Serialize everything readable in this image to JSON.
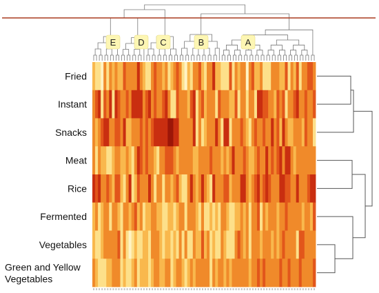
{
  "chart_data": {
    "type": "heatmap",
    "rows": [
      "Fried",
      "Instant",
      "Snacks",
      "Meat",
      "Rice",
      "Fermented",
      "Vegetables",
      "Green and Yellow Vegetables"
    ],
    "cluster_labels": [
      "E",
      "D",
      "C",
      "B",
      "A"
    ],
    "n_columns": 80,
    "value_range": [
      0,
      9
    ],
    "colormap": [
      "#fff3c4",
      "#fde08a",
      "#f9b84d",
      "#f08a2a",
      "#e2561b",
      "#c92e10",
      "#9c1608"
    ],
    "legend": "none",
    "grid": false,
    "row_dendrogram": "right",
    "column_dendrogram": "top",
    "values_by_row": {
      "Fried": [
        3,
        1,
        2,
        0,
        4,
        2,
        5,
        3,
        4,
        3,
        3,
        6,
        5,
        5,
        4,
        4,
        7,
        5,
        3,
        1,
        2,
        4,
        6,
        4,
        5,
        3,
        5,
        1,
        3,
        5,
        6,
        4,
        1,
        0,
        3,
        2,
        5,
        4,
        6,
        3,
        1,
        4,
        5,
        7,
        3,
        3,
        2,
        2,
        1,
        6,
        1,
        4,
        3,
        4,
        5,
        0,
        4,
        6,
        3,
        3,
        5,
        2,
        1,
        2,
        5,
        4,
        4,
        3,
        3,
        6,
        1,
        4,
        3,
        6,
        2,
        4,
        4,
        6,
        6,
        5
      ],
      "Instant": [
        4,
        6,
        8,
        2,
        6,
        5,
        7,
        2,
        7,
        6,
        5,
        5,
        6,
        4,
        7,
        8,
        7,
        8,
        4,
        6,
        8,
        5,
        6,
        5,
        5,
        6,
        8,
        4,
        1,
        2,
        6,
        5,
        4,
        4,
        3,
        6,
        8,
        2,
        4,
        6,
        3,
        5,
        5,
        4,
        1,
        6,
        5,
        5,
        5,
        3,
        3,
        6,
        1,
        4,
        4,
        2,
        4,
        4,
        1,
        7,
        8,
        6,
        6,
        4,
        4,
        3,
        6,
        4,
        6,
        2,
        4,
        4,
        6,
        7,
        5,
        4,
        6,
        5,
        4,
        6
      ],
      "Snacks": [
        5,
        3,
        4,
        6,
        7,
        8,
        5,
        4,
        6,
        6,
        4,
        7,
        3,
        3,
        5,
        5,
        4,
        6,
        4,
        6,
        5,
        6,
        7,
        7,
        8,
        8,
        8,
        9,
        9,
        7,
        8,
        5,
        5,
        5,
        5,
        5,
        7,
        2,
        5,
        2,
        3,
        4,
        4,
        5,
        8,
        5,
        2,
        8,
        8,
        2,
        5,
        5,
        4,
        6,
        4,
        3,
        2,
        5,
        6,
        4,
        4,
        6,
        4,
        5,
        8,
        5,
        6,
        3,
        8,
        4,
        3,
        3,
        5,
        4,
        4,
        3,
        6,
        4,
        4,
        2
      ],
      "Meat": [
        5,
        2,
        4,
        3,
        3,
        1,
        2,
        3,
        5,
        4,
        3,
        3,
        4,
        3,
        1,
        5,
        7,
        6,
        5,
        6,
        4,
        5,
        3,
        1,
        5,
        4,
        6,
        6,
        6,
        5,
        3,
        4,
        4,
        5,
        4,
        5,
        3,
        3,
        4,
        5,
        5,
        5,
        6,
        5,
        5,
        4,
        3,
        5,
        3,
        5,
        8,
        4,
        4,
        5,
        6,
        5,
        3,
        3,
        5,
        6,
        4,
        5,
        8,
        5,
        6,
        4,
        6,
        7,
        5,
        7,
        7,
        5,
        3,
        4,
        5,
        4,
        4,
        4,
        5,
        5
      ],
      "Rice": [
        8,
        6,
        7,
        5,
        4,
        6,
        4,
        3,
        6,
        6,
        3,
        2,
        5,
        7,
        2,
        3,
        6,
        5,
        4,
        4,
        7,
        5,
        2,
        4,
        4,
        2,
        4,
        4,
        3,
        5,
        6,
        3,
        2,
        2,
        5,
        7,
        5,
        3,
        4,
        8,
        5,
        3,
        2,
        8,
        4,
        5,
        5,
        6,
        6,
        3,
        4,
        4,
        5,
        7,
        7,
        5,
        3,
        5,
        6,
        7,
        4,
        6,
        8,
        6,
        4,
        5,
        4,
        7,
        7,
        6,
        6,
        4,
        5,
        7,
        5,
        5,
        5,
        6,
        8,
        7
      ],
      "Fermented": [
        3,
        4,
        1,
        3,
        4,
        4,
        2,
        5,
        5,
        3,
        2,
        4,
        4,
        3,
        4,
        6,
        3,
        4,
        1,
        3,
        3,
        4,
        5,
        3,
        3,
        1,
        1,
        3,
        3,
        2,
        3,
        5,
        4,
        2,
        4,
        5,
        4,
        3,
        2,
        4,
        2,
        2,
        3,
        1,
        3,
        1,
        5,
        5,
        3,
        2,
        1,
        3,
        3,
        4,
        3,
        5,
        2,
        5,
        5,
        6,
        2,
        5,
        3,
        4,
        4,
        5,
        3,
        4,
        5,
        6,
        5,
        4,
        5,
        5,
        4,
        3,
        4,
        5,
        3,
        6
      ],
      "Vegetables": [
        3,
        2,
        2,
        3,
        4,
        5,
        5,
        4,
        5,
        6,
        2,
        4,
        1,
        0,
        2,
        3,
        2,
        2,
        3,
        3,
        1,
        4,
        5,
        5,
        3,
        1,
        3,
        3,
        1,
        3,
        2,
        4,
        1,
        4,
        2,
        2,
        4,
        3,
        3,
        6,
        3,
        4,
        2,
        3,
        2,
        1,
        4,
        3,
        2,
        1,
        2,
        5,
        6,
        4,
        3,
        4,
        2,
        4,
        5,
        5,
        3,
        4,
        4,
        4,
        3,
        4,
        3,
        5,
        6,
        5,
        5,
        5,
        4,
        2,
        6,
        6,
        5,
        4,
        4,
        5
      ],
      "Green and Yellow Vegetables": [
        5,
        3,
        2,
        2,
        2,
        3,
        3,
        5,
        4,
        5,
        2,
        3,
        2,
        1,
        3,
        4,
        2,
        3,
        3,
        3,
        2,
        3,
        5,
        4,
        3,
        3,
        4,
        5,
        2,
        3,
        4,
        5,
        3,
        2,
        3,
        4,
        3,
        4,
        4,
        5,
        5,
        4,
        2,
        5,
        3,
        4,
        4,
        3,
        4,
        3,
        4,
        5,
        5,
        4,
        4,
        5,
        3,
        4,
        5,
        6,
        5,
        6,
        4,
        5,
        4,
        5,
        5,
        6,
        5,
        5,
        6,
        5,
        4,
        4,
        6,
        5,
        5,
        4,
        4,
        6
      ]
    }
  }
}
